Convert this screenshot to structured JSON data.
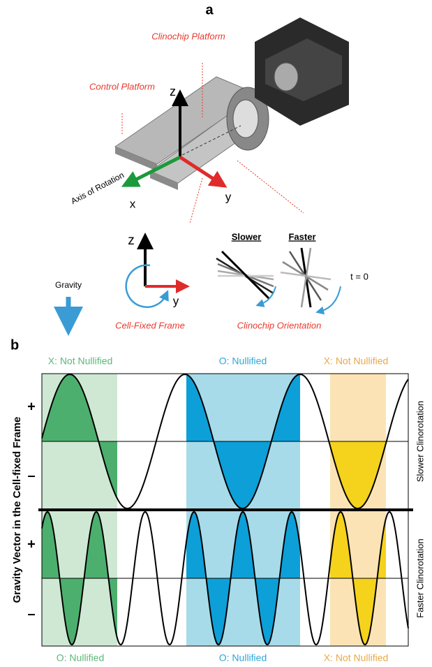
{
  "panel_a": {
    "label": "a",
    "clinochip_platform": "Clinochip Platform",
    "control_platform": "Control Platform",
    "axis_of_rotation": "Axis of Rotation",
    "axis_x": "x",
    "axis_y": "y",
    "axis_z": "z",
    "frame_z": "z",
    "frame_y": "y",
    "slower": "Slower",
    "faster": "Faster",
    "t0": "t = 0",
    "gravity": "Gravity",
    "cell_fixed_frame": "Cell-Fixed Frame",
    "clinochip_orientation": "Clinochip Orientation"
  },
  "panel_b": {
    "label": "b",
    "y_label": "Gravity Vector in the Cell-fixed Frame",
    "top_plus": "+",
    "top_minus": "–",
    "bottom_plus": "+",
    "bottom_minus": "–",
    "right_top": "Slower Clinorotation",
    "right_bottom": "Faster Clinorotation",
    "top_labels": [
      "X: Not Nullified",
      "O: Nullified",
      "X: Not Nullified"
    ],
    "bottom_labels": [
      "O: Nullified",
      "O: Nullified",
      "X: Not Nullified"
    ]
  }
}
